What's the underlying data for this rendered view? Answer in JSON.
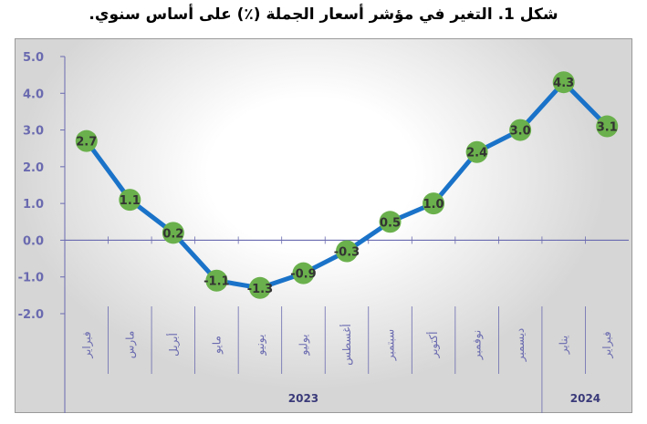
{
  "chart_data": {
    "type": "line",
    "title": "شكل 1. التغير في مؤشر أسعار الجملة (٪) على أساس سنوي.",
    "categories": [
      "فبراير",
      "مارس",
      "أبريل",
      "مايو",
      "يونيو",
      "يوليو",
      "أغسطس",
      "سبتمبر",
      "أكتوبر",
      "نوفمبر",
      "ديسمبر",
      "يناير",
      "فبراير"
    ],
    "values": [
      2.7,
      1.1,
      0.2,
      -1.1,
      -1.3,
      -0.9,
      -0.3,
      0.5,
      1.0,
      2.4,
      3.0,
      4.3,
      3.1
    ],
    "data_labels": [
      "2.7",
      "1.1",
      "0.2",
      "-1.1",
      "-1.3",
      "-0.9",
      "-0.3",
      "0.5",
      "1.0",
      "2.4",
      "3.0",
      "4.3",
      "3.1"
    ],
    "y_ticks": [
      "5.0",
      "4.0",
      "3.0",
      "2.0",
      "1.0",
      "0.0",
      "-1.0",
      "-2.0"
    ],
    "ylim": [
      -2.0,
      5.0
    ],
    "year_groups": [
      {
        "label": "2023",
        "start": 0,
        "end": 10
      },
      {
        "label": "2024",
        "start": 11,
        "end": 12
      }
    ],
    "grid": false,
    "legend": "none",
    "line_color": "#1a73c8",
    "marker_color": "#6ab04c",
    "axis_color": "#6a6ab0"
  }
}
